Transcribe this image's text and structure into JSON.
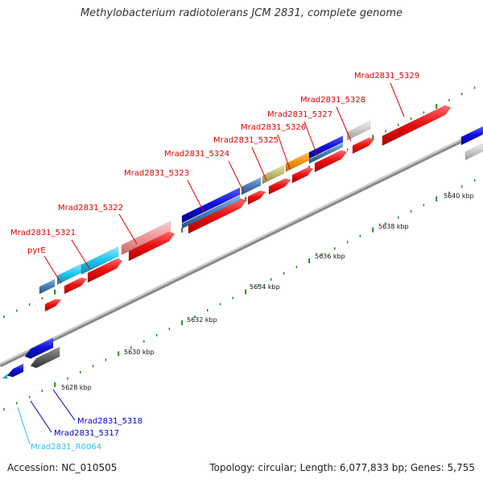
{
  "title": "Methylobacterium radiotolerans JCM 2831, complete genome",
  "footer": {
    "accession": "Accession: NC_010505",
    "topology": "Topology: circular; Length: 6,077,833 bp; Genes: 5,755"
  },
  "colors": {
    "forward_label": "#dd0000",
    "reverse_label": "#0000cc",
    "rna_label": "#33bbee",
    "backbone": "#999999",
    "tick": "#228822"
  },
  "scale_labels": [
    "5628 kbp",
    "5630 kbp",
    "5632 kbp",
    "5634 kbp",
    "5636 kbp",
    "5638 kbp",
    "5640 kbp"
  ],
  "top_labels": [
    "Mrad2831_5329",
    "Mrad2831_5328",
    "Mrad2831_5327",
    "Mrad2831_5326",
    "Mrad2831_5325",
    "Mrad2831_5324",
    "Mrad2831_5323",
    "Mrad2831_5322",
    "Mrad2831_5321",
    "pyrE"
  ],
  "bottom_labels": [
    "Mrad2831_5318",
    "Mrad2831_5317",
    "Mrad2831_R0064"
  ]
}
